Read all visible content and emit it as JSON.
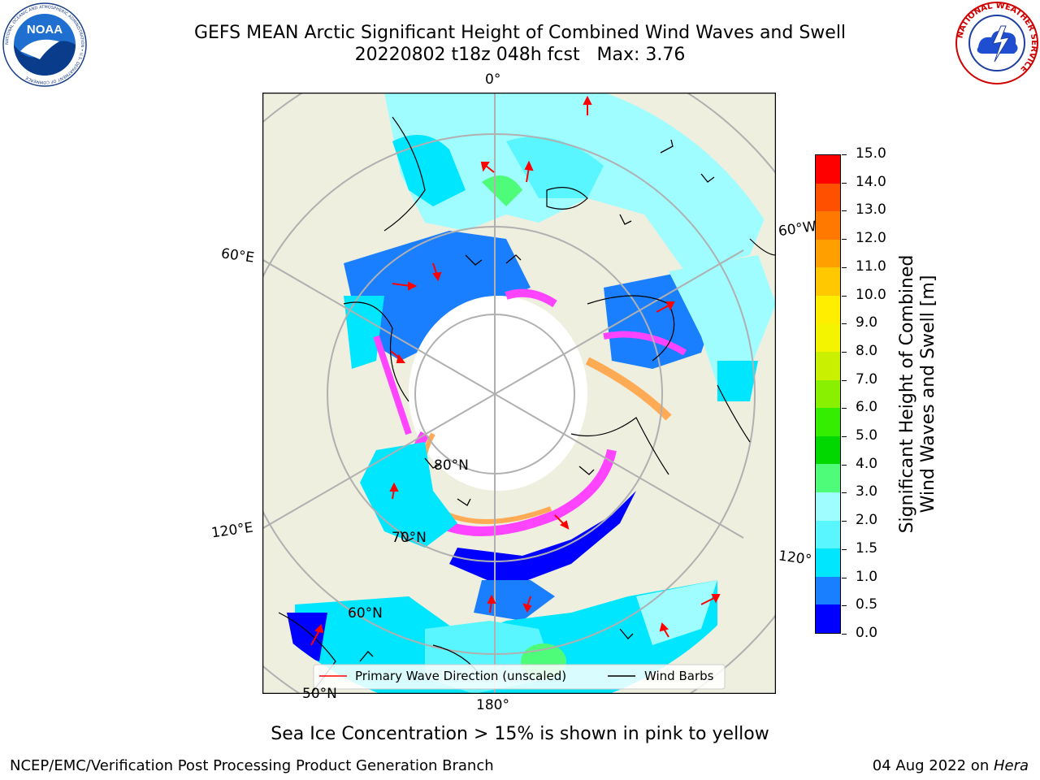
{
  "title": {
    "line1": "GEFS MEAN Arctic Significant Height of Combined Wind Waves and Swell",
    "line2": "20220802 t18z 048h fcst   Max: 3.76"
  },
  "logos": {
    "noaa_text": "NOAA",
    "noaa_ring_text": "NATIONAL OCEANIC AND ATMOSPHERIC ADMINISTRATION • U.S. DEPARTMENT OF COMMERCE",
    "nws_ring_text": "NATIONAL WEATHER SERVICE"
  },
  "map": {
    "projection": "north-polar-stereographic",
    "longitude_labels": {
      "top": "0°",
      "left_upper": "60°E",
      "left_lower": "120°E",
      "bottom": "180°",
      "right_upper": "60°W",
      "right_lower": "120°"
    },
    "latitude_labels": {
      "lat80": "80°N",
      "lat70": "70°N",
      "lat60": "60°N",
      "lat50": "50°N"
    },
    "colors": {
      "land": "#efefdf",
      "ocean_low": "#0000ff",
      "ocean_mid": "#1a7fff",
      "ocean_high": "#00f0ff",
      "pale": "#9ffcff",
      "ice_pink": "#ff44ff",
      "ice_orange": "#ffaa55",
      "wave_arrow": "#ff0000",
      "wind_barb": "#000000"
    }
  },
  "legend": {
    "primary_wave": "Primary Wave Direction (unscaled)",
    "wind_barbs": "Wind Barbs"
  },
  "colorbar": {
    "label_line1": "Significant Height of Combined",
    "label_line2": "Wind Waves and Swell [m]",
    "ticks": [
      "15.0",
      "14.0",
      "13.0",
      "12.0",
      "11.0",
      "10.0",
      "9.0",
      "8.0",
      "7.0",
      "6.0",
      "5.0",
      "4.0",
      "3.0",
      "2.0",
      "1.5",
      "1.0",
      "0.5",
      "0.0"
    ],
    "colors": [
      "#0000ff",
      "#1a7fff",
      "#00e6ff",
      "#5af6ff",
      "#9ffcff",
      "#4efc7a",
      "#00d800",
      "#33ee00",
      "#88f000",
      "#c8f000",
      "#f4f400",
      "#ffee00",
      "#ffc800",
      "#ffa000",
      "#ff7800",
      "#ff5000",
      "#ff0000"
    ]
  },
  "note": "Sea Ice Concentration > 15% is shown in pink to yellow",
  "footer": {
    "left": "NCEP/EMC/Verification Post Processing Product Generation Branch",
    "right_date": "04 Aug 2022 on ",
    "right_machine": "Hera"
  }
}
